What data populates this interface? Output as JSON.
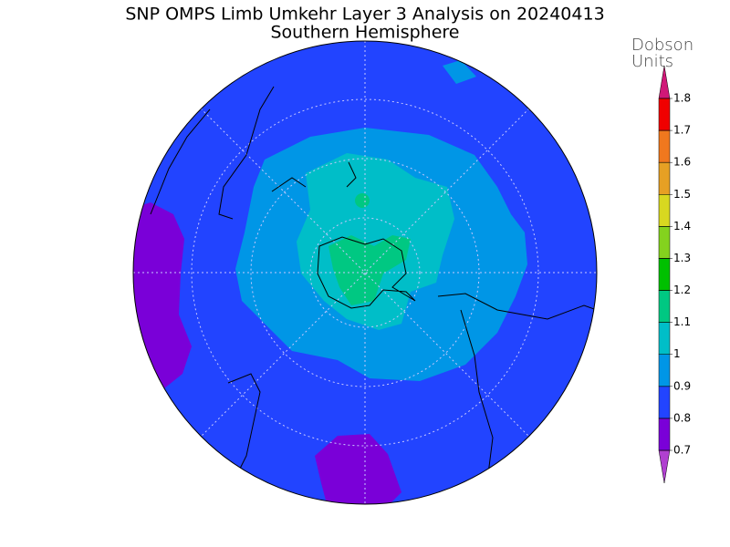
{
  "header": {
    "title": "SNP OMPS Limb Umkehr Layer 3 Analysis on 20240413",
    "subtitle": "Southern Hemisphere"
  },
  "colorbar": {
    "label": [
      "Dobson",
      "Units"
    ],
    "ticks": [
      0.7,
      0.8,
      0.9,
      1,
      1.1,
      1.2,
      1.3,
      1.4,
      1.5,
      1.6,
      1.7,
      1.8
    ],
    "colors": [
      "#7a00d8",
      "#2244ff",
      "#0096e6",
      "#00bec8",
      "#00c882",
      "#00c000",
      "#84d21e",
      "#d8d820",
      "#e6a024",
      "#f0781e",
      "#f00000"
    ],
    "under_color": "#b040d0",
    "over_color": "#d01878"
  }
}
